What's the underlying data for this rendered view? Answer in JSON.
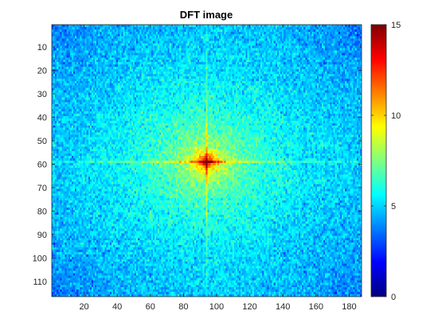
{
  "chart_data": {
    "type": "heatmap",
    "title": "DFT image",
    "xlabel": "",
    "ylabel": "",
    "x_range": [
      1,
      187
    ],
    "y_range": [
      1,
      116
    ],
    "y_reversed": true,
    "x_ticks": [
      20,
      40,
      60,
      80,
      100,
      120,
      140,
      160,
      180
    ],
    "y_ticks": [
      10,
      20,
      30,
      40,
      50,
      60,
      70,
      80,
      90,
      100,
      110
    ],
    "colormap": "jet",
    "colorbar": {
      "range": [
        0,
        15
      ],
      "ticks": [
        0,
        5,
        10,
        15
      ],
      "placement": "right"
    },
    "features": {
      "peak_center": [
        94,
        59
      ],
      "peak_value": 15,
      "background_level_approx": 5,
      "horizontal_streak_row": 59,
      "vertical_streak_col": 94
    }
  },
  "colors": {
    "axis": "#262626",
    "background": "#ffffff"
  }
}
